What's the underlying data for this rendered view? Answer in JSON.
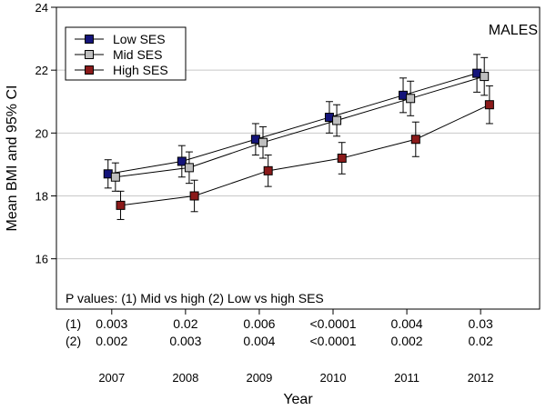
{
  "chart_data": {
    "type": "line",
    "panel_label": "MALES",
    "xlabel": "Year",
    "ylabel": "Mean BMI and 95% CI",
    "x": [
      2007,
      2008,
      2009,
      2010,
      2011,
      2012
    ],
    "x_ticks": [
      "2007",
      "2008",
      "2009",
      "2010",
      "2011",
      "2012"
    ],
    "xlim": [
      2006.25,
      2012.8
    ],
    "ylim": [
      14.4,
      24
    ],
    "y_ticks": [
      16,
      18,
      20,
      22,
      24
    ],
    "grid": "horizontal",
    "legend": "top-left",
    "series": [
      {
        "name": "Low SES",
        "color": "#14147a",
        "x_offset": -0.05,
        "values": [
          18.7,
          19.1,
          19.8,
          20.5,
          21.2,
          21.9
        ],
        "ci_low": [
          18.25,
          18.6,
          19.3,
          20.0,
          20.65,
          21.3
        ],
        "ci_high": [
          19.15,
          19.6,
          20.3,
          21.0,
          21.75,
          22.5
        ]
      },
      {
        "name": "Mid SES",
        "color": "#bebebe",
        "x_offset": 0.05,
        "values": [
          18.6,
          18.9,
          19.7,
          20.4,
          21.1,
          21.8
        ],
        "ci_low": [
          18.15,
          18.4,
          19.2,
          19.9,
          20.55,
          21.2
        ],
        "ci_high": [
          19.05,
          19.4,
          20.2,
          20.9,
          21.65,
          22.4
        ]
      },
      {
        "name": "High SES",
        "color": "#8b1a1a",
        "x_offset": 0.12,
        "values": [
          17.7,
          18.0,
          18.8,
          19.2,
          19.8,
          20.9
        ],
        "ci_low": [
          17.25,
          17.5,
          18.3,
          18.7,
          19.25,
          20.3
        ],
        "ci_high": [
          18.15,
          18.5,
          19.3,
          19.7,
          20.35,
          21.5
        ]
      }
    ],
    "annotation": "P values: (1) Mid vs high (2) Low vs high SES",
    "p_values": [
      {
        "label": "(1)",
        "values": [
          "0.003",
          "0.02",
          "0.006",
          "<0.0001",
          "0.004",
          "0.03"
        ]
      },
      {
        "label": "(2)",
        "values": [
          "0.002",
          "0.003",
          "0.004",
          "<0.0001",
          "0.002",
          "0.02"
        ]
      }
    ]
  }
}
